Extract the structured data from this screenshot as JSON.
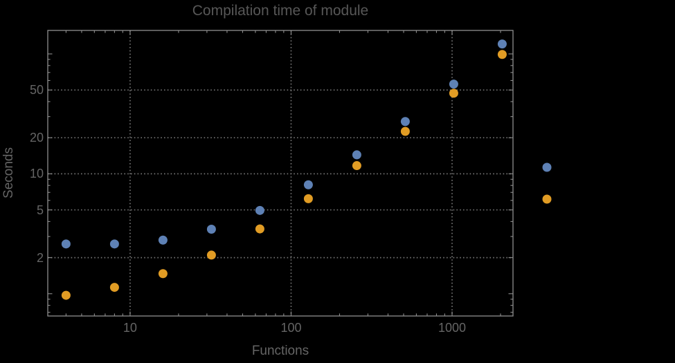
{
  "title": "Compilation time of module",
  "colors": {
    "background": "#000000",
    "frame": "#8f8f8f",
    "grid": "#757575",
    "tick": "#8f8f8f",
    "text": "#656565",
    "title_text": "#575757",
    "series1_blue": "#5e81b5",
    "series2_orange": "#e19c24"
  },
  "legend": {
    "note": "markers only, no visible text labels",
    "markers": [
      {
        "series": "series-1",
        "color": "#5e81b5"
      },
      {
        "series": "series-2",
        "color": "#e19c24"
      }
    ]
  },
  "chart_data": {
    "type": "scatter",
    "title": "Compilation time of module",
    "xlabel": "Functions",
    "ylabel": "Seconds",
    "x_scale": "log",
    "y_scale": "log",
    "x": [
      4,
      8,
      16,
      32,
      64,
      128,
      256,
      512,
      1024,
      2048
    ],
    "series": [
      {
        "name": "series-1",
        "color": "#5e81b5",
        "values": [
          2.6,
          2.6,
          2.8,
          3.45,
          4.95,
          8.1,
          14.4,
          27.3,
          56,
          121
        ]
      },
      {
        "name": "series-2",
        "color": "#e19c24",
        "values": [
          0.97,
          1.13,
          1.47,
          2.1,
          3.47,
          6.2,
          11.7,
          22.6,
          47,
          99
        ]
      }
    ],
    "x_ticks": [
      10,
      100,
      1000
    ],
    "x_tick_labels": [
      "10",
      "100",
      "1000"
    ],
    "y_ticks": [
      50,
      20,
      10,
      5,
      2
    ],
    "y_tick_labels": [
      "50",
      "20",
      "10",
      "5",
      "2"
    ],
    "xlim": [
      3.08,
      2390
    ],
    "ylim": [
      0.652,
      157
    ],
    "grid": "dotted gridlines at major ticks, both axes",
    "legend_position": "outside right, markers only"
  }
}
